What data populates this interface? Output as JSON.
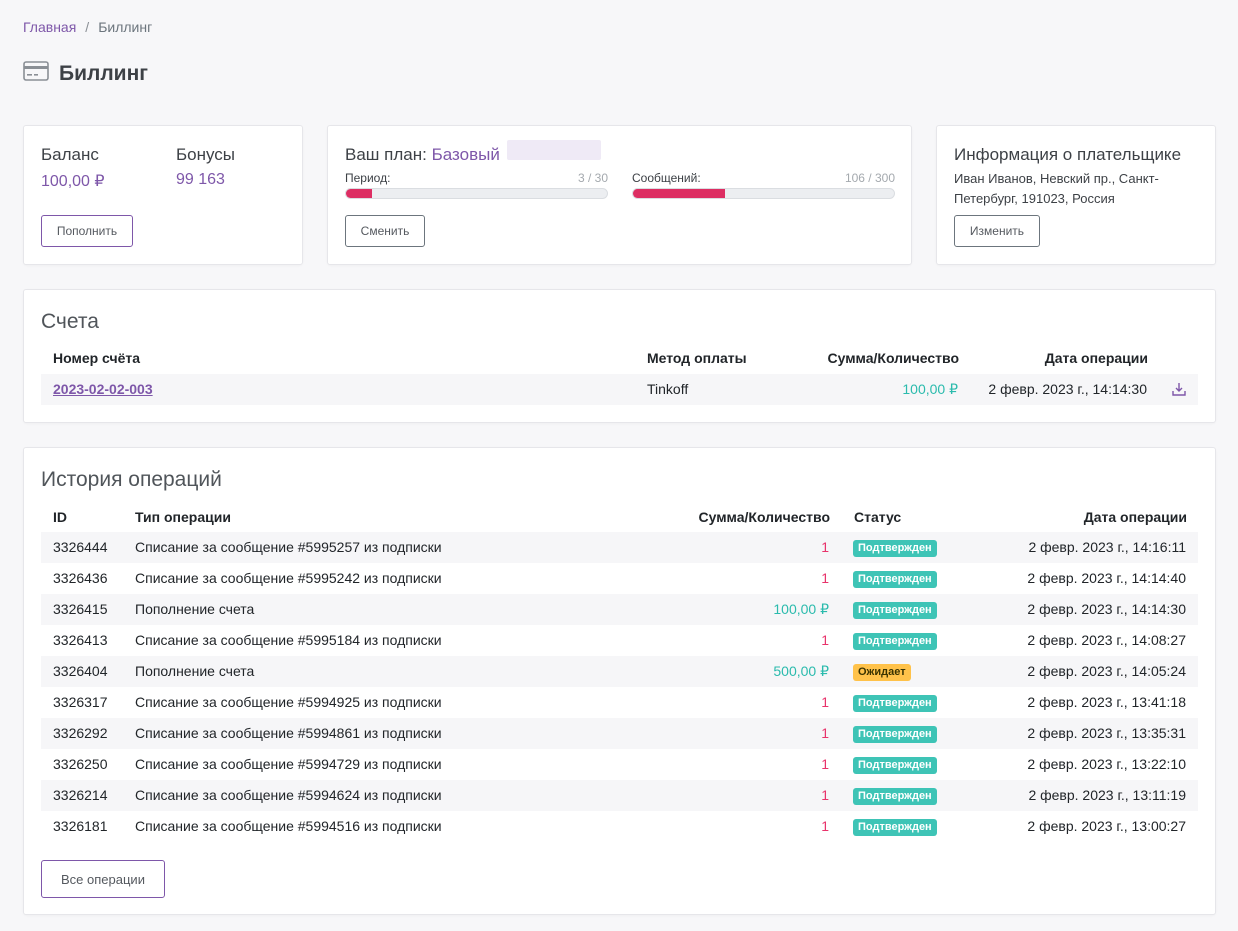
{
  "breadcrumb": {
    "home": "Главная",
    "separator": "/",
    "current": "Биллинг"
  },
  "page": {
    "title": "Биллинг",
    "icon": "credit-card-icon"
  },
  "balance": {
    "balance_label": "Баланс",
    "balance_value": "100,00 ₽",
    "bonus_label": "Бонусы",
    "bonus_value": "99 163",
    "topup_button": "Пополнить"
  },
  "plan": {
    "label": "Ваш план:",
    "name": "Базовый",
    "period_label": "Период:",
    "period_count": "3 / 30",
    "period_fraction": 0.1,
    "messages_label": "Сообщений:",
    "messages_count": "106 / 300",
    "messages_fraction": 0.3533,
    "change_button": "Сменить"
  },
  "payer": {
    "title": "Информация о плательщике",
    "address_line1": "Иван Иванов, Невский пр., Санкт-",
    "address_line2": "Петербург, 191023, Россия",
    "edit_button": "Изменить"
  },
  "invoices": {
    "title": "Счета",
    "headers": {
      "number": "Номер счёта",
      "method": "Метод оплаты",
      "amount": "Сумма/Количество",
      "date": "Дата операции"
    },
    "rows": [
      {
        "number": "2023-02-02-003",
        "method": "Tinkoff",
        "amount": "100,00 ₽",
        "date": "2 февр. 2023 г., 14:14:30",
        "icon": "download-icon"
      }
    ]
  },
  "history": {
    "title": "История операций",
    "headers": {
      "id": "ID",
      "type": "Тип операции",
      "amount": "Сумма/Количество",
      "status": "Статус",
      "date": "Дата операции"
    },
    "rows": [
      {
        "id": "3326444",
        "type": "Списание за сообщение #5995257 из подписки",
        "amount": "1",
        "kind": "neg",
        "status": "Подтвержден",
        "status_kind": "ok",
        "date": "2 февр. 2023 г., 14:16:11"
      },
      {
        "id": "3326436",
        "type": "Списание за сообщение #5995242 из подписки",
        "amount": "1",
        "kind": "neg",
        "status": "Подтвержден",
        "status_kind": "ok",
        "date": "2 февр. 2023 г., 14:14:40"
      },
      {
        "id": "3326415",
        "type": "Пополнение счета",
        "amount": "100,00 ₽",
        "kind": "pos",
        "status": "Подтвержден",
        "status_kind": "ok",
        "date": "2 февр. 2023 г., 14:14:30"
      },
      {
        "id": "3326413",
        "type": "Списание за сообщение #5995184 из подписки",
        "amount": "1",
        "kind": "neg",
        "status": "Подтвержден",
        "status_kind": "ok",
        "date": "2 февр. 2023 г., 14:08:27"
      },
      {
        "id": "3326404",
        "type": "Пополнение счета",
        "amount": "500,00 ₽",
        "kind": "pos",
        "status": "Ожидает",
        "status_kind": "wait",
        "date": "2 февр. 2023 г., 14:05:24"
      },
      {
        "id": "3326317",
        "type": "Списание за сообщение #5994925 из подписки",
        "amount": "1",
        "kind": "neg",
        "status": "Подтвержден",
        "status_kind": "ok",
        "date": "2 февр. 2023 г., 13:41:18"
      },
      {
        "id": "3326292",
        "type": "Списание за сообщение #5994861 из подписки",
        "amount": "1",
        "kind": "neg",
        "status": "Подтвержден",
        "status_kind": "ok",
        "date": "2 февр. 2023 г., 13:35:31"
      },
      {
        "id": "3326250",
        "type": "Списание за сообщение #5994729 из подписки",
        "amount": "1",
        "kind": "neg",
        "status": "Подтвержден",
        "status_kind": "ok",
        "date": "2 февр. 2023 г., 13:22:10"
      },
      {
        "id": "3326214",
        "type": "Списание за сообщение #5994624 из подписки",
        "amount": "1",
        "kind": "neg",
        "status": "Подтвержден",
        "status_kind": "ok",
        "date": "2 февр. 2023 г., 13:11:19"
      },
      {
        "id": "3326181",
        "type": "Списание за сообщение #5994516 из подписки",
        "amount": "1",
        "kind": "neg",
        "status": "Подтвержден",
        "status_kind": "ok",
        "date": "2 февр. 2023 г., 13:00:27"
      }
    ],
    "all_button": "Все операции"
  },
  "colors": {
    "accent": "#7e57a9",
    "positive": "#2bbbad",
    "negative": "#e8336b",
    "progress": "#dd2e63",
    "confirmed": "#3ec4b6",
    "pending": "#ffc24a"
  }
}
